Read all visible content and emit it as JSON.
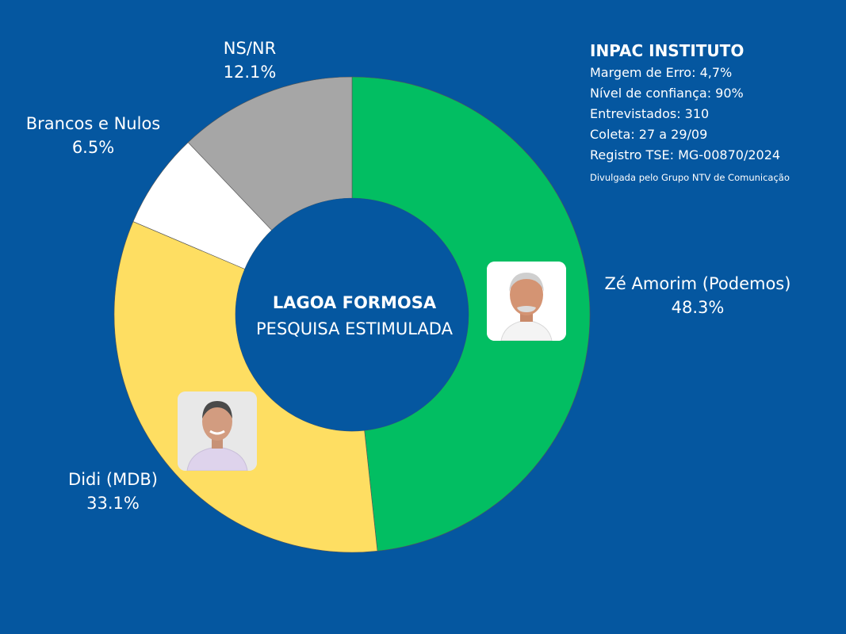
{
  "center": {
    "title": "LAGOA FORMOSA",
    "subtitle": "PESQUISA ESTIMULADA"
  },
  "info": {
    "title": "INPAC INSTITUTO",
    "margin": "Margem de Erro: 4,7%",
    "confidence": "Nível de confiança: 90%",
    "interviewed": "Entrevistados: 310",
    "collection": "Coleta: 27 a 29/09",
    "registry": "Registro TSE: MG-00870/2024",
    "credit": "Divulgada pelo Grupo NTV de Comunicação"
  },
  "labels": {
    "ze": {
      "name": "Zé Amorim (Podemos)",
      "value": "48.3%"
    },
    "didi": {
      "name": "Didi (MDB)",
      "value": "33.1%"
    },
    "brancos": {
      "name": "Brancos e Nulos",
      "value": "6.5%"
    },
    "nsnr": {
      "name": "NS/NR",
      "value": "12.1%"
    }
  },
  "chart_data": {
    "type": "pie",
    "donut": true,
    "title": "LAGOA FORMOSA",
    "subtitle": "PESQUISA ESTIMULADA",
    "categories": [
      "Zé Amorim (Podemos)",
      "Didi (MDB)",
      "Brancos e Nulos",
      "NS/NR"
    ],
    "values": [
      48.3,
      33.1,
      6.5,
      12.1
    ],
    "colors": [
      "#02be62",
      "#fede62",
      "#ffffff",
      "#a6a6a6"
    ],
    "start": "top",
    "direction": "clockwise"
  },
  "colors": {
    "background": "#0557a0"
  }
}
